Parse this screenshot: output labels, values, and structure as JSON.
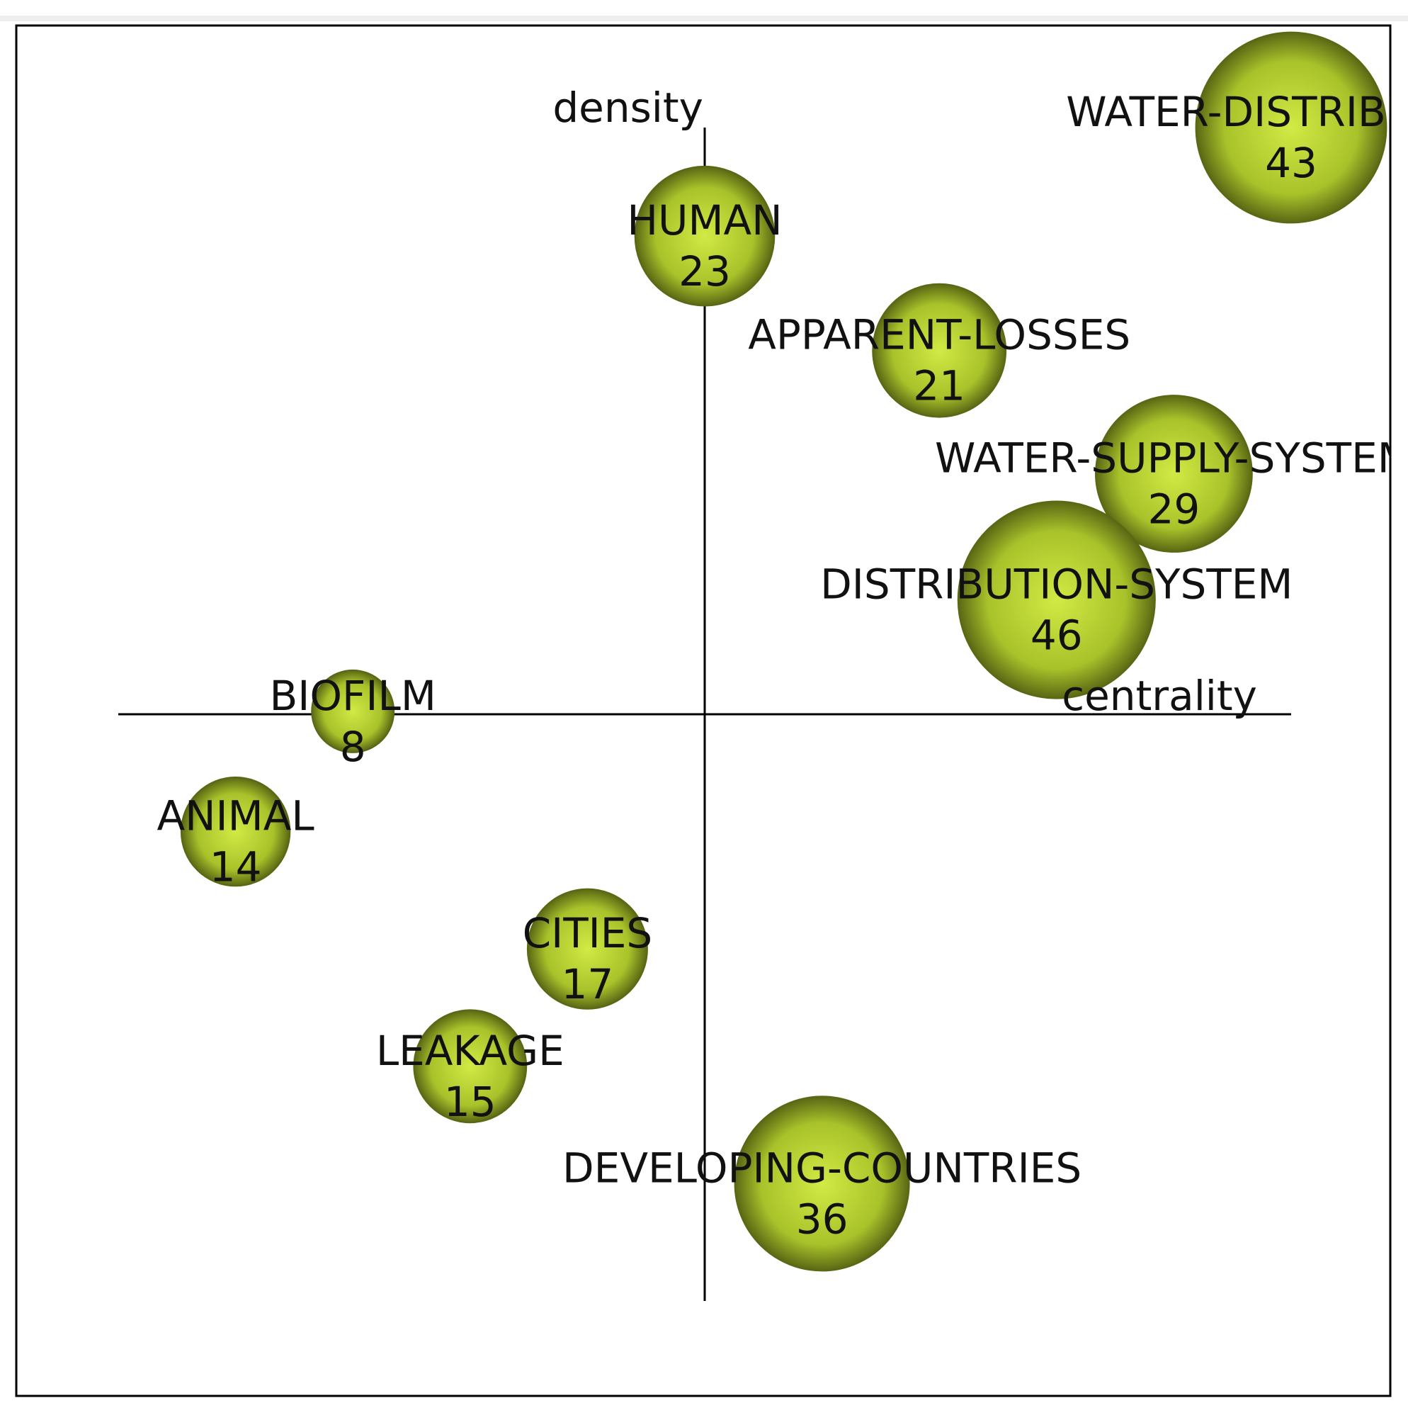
{
  "chart_data": {
    "type": "scatter",
    "title": "",
    "xlabel": "centrality",
    "ylabel": "density",
    "grid": false,
    "legend": "none",
    "bubble_color": "#a8c22a",
    "bubble_highlight": "#d2ea44",
    "bubble_edge": "#5a6814",
    "xlim": [
      -10,
      10
    ],
    "ylim": [
      -10,
      10
    ],
    "points": [
      {
        "label": "WATER-DISTRIBUTION",
        "value": "43",
        "size": 43,
        "x": 10.0,
        "y": 10.0
      },
      {
        "label": "HUMAN",
        "value": "23",
        "size": 23,
        "x": 0.0,
        "y": 8.15
      },
      {
        "label": "APPARENT-LOSSES",
        "value": "21",
        "size": 21,
        "x": 4.0,
        "y": 6.2
      },
      {
        "label": "WATER-SUPPLY-SYSTEM",
        "value": "29",
        "size": 29,
        "x": 8.0,
        "y": 4.1
      },
      {
        "label": "DISTRIBUTION-SYSTEM",
        "value": "46",
        "size": 46,
        "x": 6.0,
        "y": 1.95
      },
      {
        "label": "BIOFILM",
        "value": "8",
        "size": 8,
        "x": -6.0,
        "y": 0.05
      },
      {
        "label": "ANIMAL",
        "value": "14",
        "size": 14,
        "x": -8.0,
        "y": -2.0
      },
      {
        "label": "CITIES",
        "value": "17",
        "size": 17,
        "x": -2.0,
        "y": -4.0
      },
      {
        "label": "LEAKAGE",
        "value": "15",
        "size": 15,
        "x": -4.0,
        "y": -6.0
      },
      {
        "label": "DEVELOPING-COUNTRIES",
        "value": "36",
        "size": 36,
        "x": 2.0,
        "y": -8.0
      }
    ]
  }
}
